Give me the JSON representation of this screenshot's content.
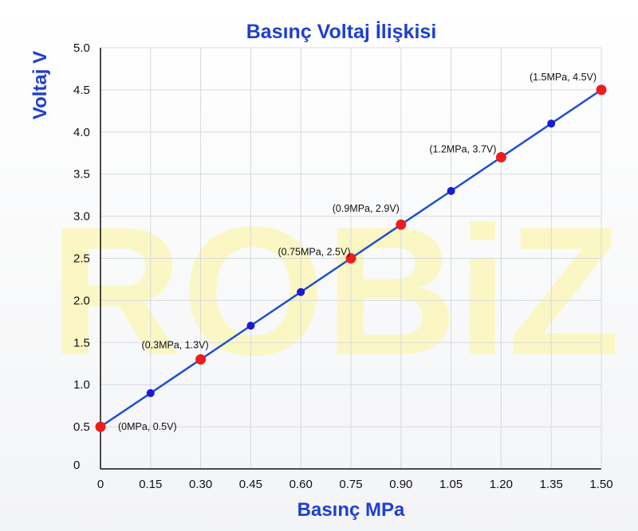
{
  "chart_data": {
    "type": "line",
    "title": "Basınç Voltaj İlişkisi",
    "xlabel": "Basınç MPa",
    "ylabel": "Voltaj V",
    "watermark": "ROBiZ",
    "xlim": [
      0,
      1.5
    ],
    "ylim": [
      0,
      5.0
    ],
    "x_ticks": [
      "0",
      "0.15",
      "0.30",
      "0.45",
      "0.60",
      "0.75",
      "0.90",
      "1.05",
      "1.20",
      "1.35",
      "1.50"
    ],
    "y_ticks": [
      "0",
      "0.5",
      "1.0",
      "1.5",
      "2.0",
      "2.5",
      "3.0",
      "3.5",
      "4.0",
      "4.5",
      "5.0"
    ],
    "grid": true,
    "series": [
      {
        "x": [
          0,
          0.15,
          0.3,
          0.45,
          0.6,
          0.75,
          0.9,
          1.05,
          1.2,
          1.35,
          1.5
        ],
        "y": [
          0.5,
          0.9,
          1.3,
          1.7,
          2.1,
          2.5,
          2.9,
          3.3,
          3.7,
          4.1,
          4.5
        ],
        "color": "#1f4fd0"
      }
    ],
    "highlighted_points": [
      {
        "x": 0,
        "y": 0.5,
        "label": "(0MPa, 0.5V)"
      },
      {
        "x": 0.3,
        "y": 1.3,
        "label": "(0.3MPa, 1.3V)"
      },
      {
        "x": 0.75,
        "y": 2.5,
        "label": "(0.75MPa, 2.5V)"
      },
      {
        "x": 0.9,
        "y": 2.9,
        "label": "(0.9MPa, 2.9V)"
      },
      {
        "x": 1.2,
        "y": 3.7,
        "label": "(1.2MPa, 3.7V)"
      },
      {
        "x": 1.5,
        "y": 4.5,
        "label": "(1.5MPa, 4.5V)"
      }
    ],
    "colors": {
      "title": "#1f3fd0",
      "line": "#1f4fd0",
      "point": "#1a1ad6",
      "highlight": "#ee1c1c",
      "grid": "#d7d9dd",
      "axis": "#111111",
      "watermark": "#fbf7c4"
    }
  }
}
